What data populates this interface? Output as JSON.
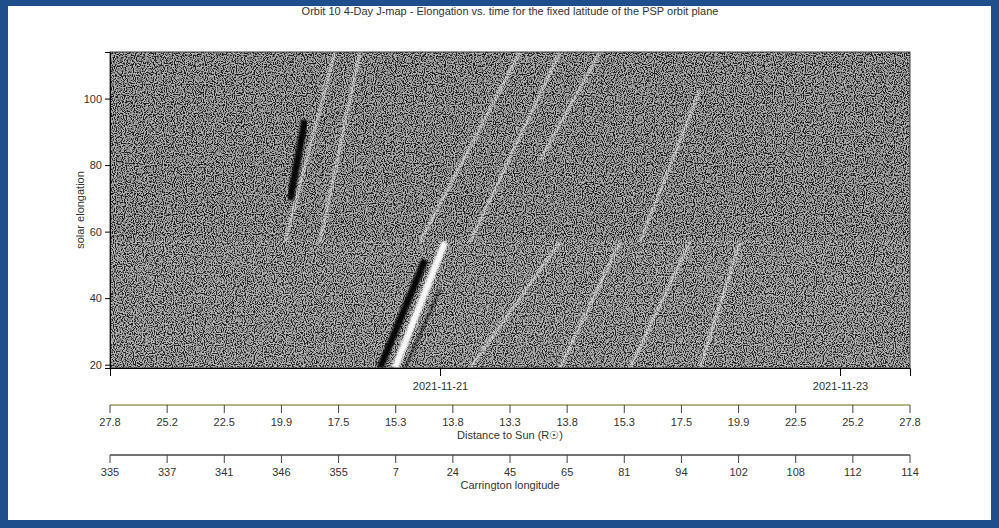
{
  "chart_data": {
    "type": "jmap",
    "title": "Orbit 10 4-Day J-map - Elongation vs. time for the fixed latitude of the PSP orbit plane",
    "y_label": "solar elongation",
    "xlim": [
      "2021-11-19T08:24",
      "2021-11-23T08:24"
    ],
    "ylim": [
      19,
      114
    ],
    "yticks": [
      20,
      40,
      60,
      80,
      100
    ],
    "xticks": [
      "2021-11-21",
      "2021-11-23"
    ],
    "panel_boundary": 57,
    "distance_axis": {
      "label": "Distance to Sun (R☉)",
      "ticks": [
        27.8,
        25.2,
        22.5,
        19.9,
        17.5,
        15.3,
        13.8,
        13.3,
        13.8,
        15.3,
        17.5,
        19.9,
        22.5,
        25.2,
        27.8
      ]
    },
    "carrington_axis": {
      "label": "Carrington longitude",
      "ticks": [
        335,
        337,
        341,
        346,
        355,
        7,
        24,
        45,
        65,
        81,
        94,
        102,
        108,
        112,
        114
      ]
    },
    "series": [
      {
        "color": "#ffffff",
        "line_style": "bold",
        "x": [
          "2021-11-20T18:36",
          "2021-11-21T00:36"
        ],
        "values": [
          19,
          56.9
        ]
      },
      {
        "color": "#000000",
        "line_style": "bold",
        "x": [
          "2021-11-20T16:48",
          "2021-11-20T22:12"
        ],
        "values": [
          19,
          51.5
        ]
      },
      {
        "color": "#000000",
        "line_style": "solid",
        "x": [
          "2021-11-20T19:48",
          "2021-11-21T00:00"
        ],
        "values": [
          19,
          42.5
        ]
      },
      {
        "color": "#ffffff",
        "line_style": "solid",
        "x": [
          "2021-11-20T05:24",
          "2021-11-20T11:24"
        ],
        "values": [
          56.9,
          114
        ]
      },
      {
        "color": "#000000",
        "line_style": "bold",
        "x": [
          "2021-11-20T06:00",
          "2021-11-20T07:48"
        ],
        "values": [
          69.5,
          93.6
        ]
      },
      {
        "color": "#ffffff",
        "line_style": "solid",
        "x": [
          "2021-11-20T09:36",
          "2021-11-20T14:24"
        ],
        "values": [
          56.9,
          114
        ]
      },
      {
        "color": "#ffffff",
        "line_style": "solid",
        "x": [
          "2021-11-21T03:36",
          "2021-11-21T14:24"
        ],
        "values": [
          19,
          56.9
        ]
      },
      {
        "color": "#ffffff",
        "line_style": "solid",
        "x": [
          "2021-11-21T14:24",
          "2021-11-21T21:36"
        ],
        "values": [
          19,
          56.9
        ]
      },
      {
        "color": "#ffffff",
        "line_style": "solid",
        "x": [
          "2021-11-21T22:48",
          "2021-11-22T06:00"
        ],
        "values": [
          19,
          56.9
        ]
      },
      {
        "color": "#ffffff",
        "line_style": "solid",
        "x": [
          "2021-11-22T07:12",
          "2021-11-22T12:00"
        ],
        "values": [
          19,
          56.9
        ]
      },
      {
        "color": "#ffffff",
        "line_style": "solid",
        "x": [
          "2021-11-20T21:36",
          "2021-11-21T09:36"
        ],
        "values": [
          56.9,
          114
        ]
      },
      {
        "color": "#ffffff",
        "line_style": "solid",
        "x": [
          "2021-11-21T03:36",
          "2021-11-21T14:24"
        ],
        "values": [
          56.9,
          114
        ]
      },
      {
        "color": "#ffffff",
        "line_style": "solid",
        "x": [
          "2021-11-21T12:00",
          "2021-11-21T19:12"
        ],
        "values": [
          81.5,
          114
        ]
      },
      {
        "color": "#ffffff",
        "line_style": "solid",
        "x": [
          "2021-11-22T00:00",
          "2021-11-22T07:12"
        ],
        "values": [
          56.9,
          102.6
        ]
      }
    ]
  }
}
